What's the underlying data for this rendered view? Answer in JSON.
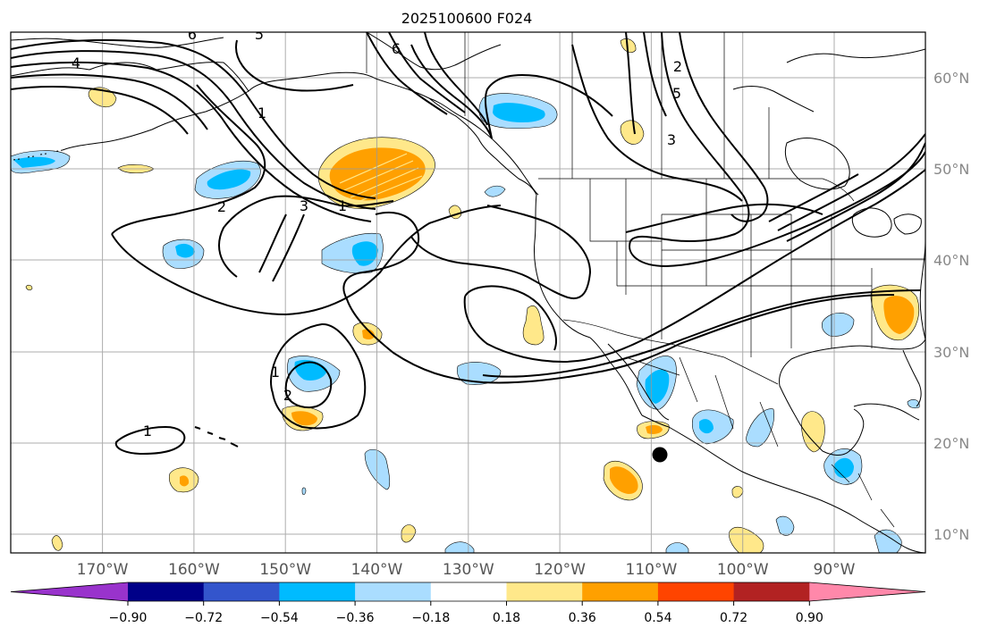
{
  "title": "2025100600 F024",
  "map": {
    "longitude_range": [
      -180,
      -80
    ],
    "latitude_range": [
      8,
      65
    ],
    "lon_ticks": [
      "170°W",
      "160°W",
      "150°W",
      "140°W",
      "130°W",
      "120°W",
      "110°W",
      "100°W",
      "90°W"
    ],
    "lat_ticks": [
      "60°N",
      "50°N",
      "40°N",
      "30°N",
      "20°N",
      "10°N"
    ],
    "contour_labels": [
      "6",
      "4",
      "5",
      "6",
      "5",
      "3",
      "2",
      "3",
      "1",
      "1",
      "2",
      "1",
      "1",
      "2"
    ],
    "marker": "storm-position-dot"
  },
  "colorbar": {
    "colors": [
      "#9933cc",
      "#000088",
      "#3355cc",
      "#00bbff",
      "#aaddff",
      "#ffffff",
      "#ffe88a",
      "#ffa000",
      "#ff4400",
      "#b22222",
      "#ff88aa"
    ],
    "tick_labels": [
      "−0.90",
      "−0.72",
      "−0.54",
      "−0.36",
      "−0.18",
      "0.18",
      "0.36",
      "0.54",
      "0.72",
      "0.90"
    ]
  }
}
